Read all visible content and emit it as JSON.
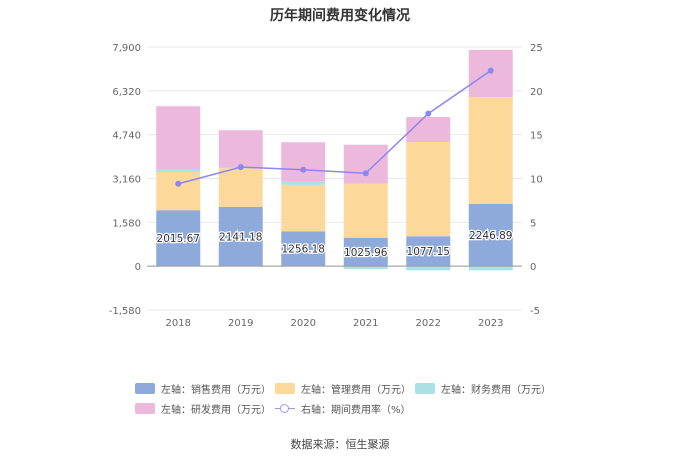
{
  "chart_data": {
    "type": "bar",
    "title": "历年期间费用变化情况",
    "categories": [
      "2018",
      "2019",
      "2020",
      "2021",
      "2022",
      "2023"
    ],
    "y_left": {
      "ticks": [
        "7,900",
        "6,320",
        "4,740",
        "3,160",
        "1,580",
        "0",
        "-1,580"
      ],
      "ylim": [
        -1580,
        7900
      ]
    },
    "y_right": {
      "ticks": [
        "25",
        "20",
        "15",
        "10",
        "5",
        "0",
        "-5"
      ],
      "ylim": [
        -5,
        25
      ]
    },
    "series": [
      {
        "name": "左轴：销售费用（万元）",
        "color": "#8eaadb",
        "stack": true,
        "values": [
          2015.67,
          2141.18,
          1256.18,
          1025.96,
          1077.15,
          2246.89
        ],
        "labels": [
          "2015.67",
          "2141.18",
          "1256.18",
          "1025.96",
          "1077.15",
          "2246.89"
        ]
      },
      {
        "name": "左轴：管理费用（万元）",
        "color": "#fdd89b",
        "stack": true,
        "values": [
          1380,
          1390,
          1680,
          1950,
          3400,
          3850
        ]
      },
      {
        "name": "左轴：财务费用（万元）",
        "color": "#a9e1e4",
        "stack": true,
        "values": [
          80,
          20,
          130,
          -100,
          -150,
          -150
        ]
      },
      {
        "name": "左轴：研发费用（万元）",
        "color": "#ecb8dc",
        "stack": true,
        "values": [
          2290,
          1350,
          1400,
          1400,
          900,
          1700
        ]
      },
      {
        "name": "右轴：期间费用率（%）",
        "color": "#8c86f0",
        "axis": "right",
        "type": "line",
        "values": [
          9.4,
          11.3,
          11.0,
          10.6,
          17.4,
          22.3
        ]
      }
    ],
    "grid": true,
    "legend_position": "bottom"
  },
  "source_text": "数据来源：恒生聚源"
}
